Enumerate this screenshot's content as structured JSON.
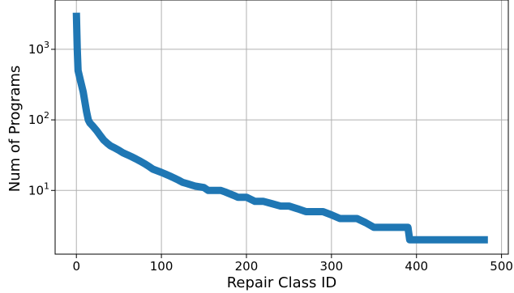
{
  "chart_data": {
    "type": "line",
    "title": "",
    "xlabel": "Repair Class ID",
    "ylabel": "Num of Programs",
    "xscale": "linear",
    "yscale": "log",
    "xlim": [
      -25,
      508
    ],
    "ylim": [
      1.25,
      5000
    ],
    "grid": true,
    "legend": "none",
    "x_ticks": [
      {
        "value": 0,
        "label": "0"
      },
      {
        "value": 100,
        "label": "100"
      },
      {
        "value": 200,
        "label": "200"
      },
      {
        "value": 300,
        "label": "300"
      },
      {
        "value": 400,
        "label": "400"
      },
      {
        "value": 500,
        "label": "500"
      }
    ],
    "y_ticks": [
      {
        "value": 10,
        "base": "10",
        "exp": "1"
      },
      {
        "value": 100,
        "base": "10",
        "exp": "2"
      },
      {
        "value": 1000,
        "base": "10",
        "exp": "3"
      }
    ],
    "series": [
      {
        "color": "#1f77b4",
        "x": [
          0,
          1,
          2,
          5,
          8,
          10,
          12,
          14,
          16,
          20,
          24,
          28,
          32,
          36,
          40,
          45,
          50,
          55,
          60,
          65,
          70,
          75,
          80,
          85,
          90,
          95,
          100,
          105,
          110,
          115,
          120,
          125,
          130,
          135,
          140,
          150,
          155,
          160,
          170,
          175,
          180,
          185,
          190,
          200,
          210,
          220,
          230,
          240,
          250,
          260,
          270,
          280,
          290,
          300,
          310,
          320,
          330,
          340,
          350,
          360,
          370,
          380,
          390,
          392,
          400,
          450,
          484
        ],
        "y": [
          3300,
          1000,
          500,
          350,
          250,
          180,
          130,
          100,
          90,
          80,
          70,
          60,
          52,
          47,
          43,
          40,
          37,
          34,
          32,
          30,
          28,
          26,
          24,
          22,
          20,
          19,
          18,
          17,
          16,
          15,
          14,
          13,
          12.5,
          12,
          11.5,
          11,
          10,
          10,
          10,
          9.5,
          9,
          8.5,
          8,
          8,
          7,
          7,
          6.5,
          6,
          6,
          5.5,
          5,
          5,
          5,
          4.5,
          4,
          4,
          4,
          3.5,
          3,
          3,
          3,
          3,
          3,
          2,
          2,
          2,
          2
        ]
      }
    ]
  }
}
